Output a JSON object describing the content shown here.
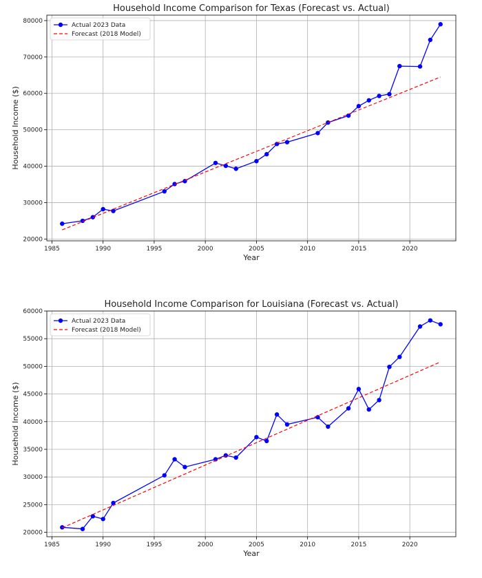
{
  "chart_data": [
    {
      "type": "line",
      "title": "Household Income Comparison for Texas (Forecast vs. Actual)",
      "xlabel": "Year",
      "ylabel": "Household Income ($)",
      "xlim": [
        1984.5,
        2024.5
      ],
      "ylim": [
        19500,
        81500
      ],
      "xticks": [
        1985,
        1990,
        1995,
        2000,
        2005,
        2010,
        2015,
        2020
      ],
      "yticks": [
        20000,
        30000,
        40000,
        50000,
        60000,
        70000,
        80000
      ],
      "grid": true,
      "legend_position": "top-left",
      "series": [
        {
          "name": "Actual 2023 Data",
          "style": "solid-line-with-markers",
          "color": "#0000ff",
          "points": [
            [
              1986,
              24200
            ],
            [
              1988,
              25000
            ],
            [
              1989,
              26000
            ],
            [
              1990,
              28200
            ],
            [
              1991,
              27700
            ],
            [
              1996,
              33100
            ],
            [
              1997,
              35100
            ],
            [
              1998,
              35900
            ],
            [
              2001,
              40900
            ],
            [
              2002,
              40100
            ],
            [
              2003,
              39300
            ],
            [
              2005,
              41400
            ],
            [
              2006,
              43300
            ],
            [
              2007,
              46100
            ],
            [
              2008,
              46600
            ],
            [
              2011,
              49100
            ],
            [
              2012,
              52000
            ],
            [
              2014,
              53900
            ],
            [
              2015,
              56500
            ],
            [
              2016,
              58100
            ],
            [
              2017,
              59300
            ],
            [
              2018,
              59800
            ],
            [
              2019,
              67500
            ],
            [
              2021,
              67400
            ],
            [
              2022,
              74700
            ],
            [
              2023,
              79000
            ]
          ]
        },
        {
          "name": "Forecast (2018 Model)",
          "style": "dashed-line",
          "color": "#ff0000",
          "points": [
            [
              1986,
              22500
            ],
            [
              2023,
              64500
            ]
          ]
        }
      ]
    },
    {
      "type": "line",
      "title": "Household Income Comparison for Louisiana (Forecast vs. Actual)",
      "xlabel": "Year",
      "ylabel": "Household Income ($)",
      "xlim": [
        1984.5,
        2024.5
      ],
      "ylim": [
        19200,
        60000
      ],
      "xticks": [
        1985,
        1990,
        1995,
        2000,
        2005,
        2010,
        2015,
        2020
      ],
      "yticks": [
        20000,
        25000,
        30000,
        35000,
        40000,
        45000,
        50000,
        55000,
        60000
      ],
      "grid": true,
      "legend_position": "top-left",
      "series": [
        {
          "name": "Actual 2023 Data",
          "style": "solid-line-with-markers",
          "color": "#0000ff",
          "points": [
            [
              1986,
              20900
            ],
            [
              1988,
              20600
            ],
            [
              1989,
              22900
            ],
            [
              1990,
              22400
            ],
            [
              1991,
              25300
            ],
            [
              1996,
              30300
            ],
            [
              1997,
              33200
            ],
            [
              1998,
              31800
            ],
            [
              2001,
              33200
            ],
            [
              2002,
              33900
            ],
            [
              2003,
              33500
            ],
            [
              2005,
              37200
            ],
            [
              2006,
              36500
            ],
            [
              2007,
              41300
            ],
            [
              2008,
              39500
            ],
            [
              2011,
              40800
            ],
            [
              2012,
              39100
            ],
            [
              2014,
              42400
            ],
            [
              2015,
              45900
            ],
            [
              2016,
              42200
            ],
            [
              2017,
              43900
            ],
            [
              2018,
              49900
            ],
            [
              2019,
              51700
            ],
            [
              2021,
              57200
            ],
            [
              2022,
              58300
            ],
            [
              2023,
              57600
            ]
          ]
        },
        {
          "name": "Forecast (2018 Model)",
          "style": "dashed-line",
          "color": "#ff0000",
          "points": [
            [
              1986,
              20800
            ],
            [
              2023,
              50800
            ]
          ]
        }
      ]
    }
  ]
}
